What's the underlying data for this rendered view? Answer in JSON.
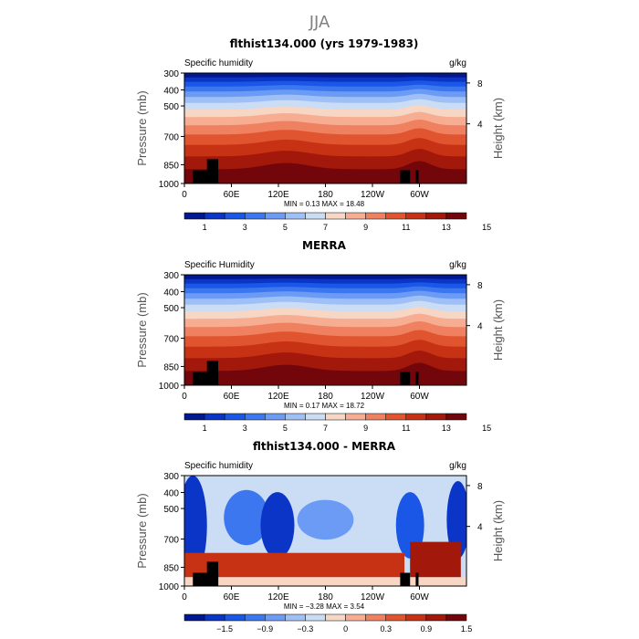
{
  "figure": {
    "title": "JJA"
  },
  "chart_data": [
    {
      "type": "heatmap",
      "title": "flthist134.000 (yrs 1979-1983)",
      "left_label": "Specific humidity",
      "units": "g/kg",
      "ylabel": "Pressure (mb)",
      "ylabel_right": "Height (km)",
      "y_ticks": [
        "300",
        "400",
        "500",
        "700",
        "850",
        "1000"
      ],
      "y_ticks_right": [
        "8",
        "4"
      ],
      "x_ticks": [
        "0",
        "60E",
        "120E",
        "180",
        "120W",
        "60W"
      ],
      "stats": "MIN =    0.13   MAX =   18.48",
      "colorbar_labels": [
        "1",
        "3",
        "5",
        "7",
        "9",
        "11",
        "13",
        "15"
      ],
      "colorbar_colors": [
        "#02188f",
        "#0a35c7",
        "#1a57e6",
        "#3c77f0",
        "#6b9bf5",
        "#9fc0f7",
        "#cbdcf5",
        "#f7d6c4",
        "#f6ad92",
        "#ef8060",
        "#e0552f",
        "#c73214",
        "#a2180a",
        "#73060a"
      ],
      "surface": "1.00",
      "ridge": "0.00",
      "dry_gain": "0.00"
    },
    {
      "type": "heatmap",
      "title": "MERRA",
      "left_label": "Specific Humidity",
      "units": "g/kg",
      "ylabel": "Pressure (mb)",
      "ylabel_right": "Height (km)",
      "y_ticks": [
        "300",
        "400",
        "500",
        "700",
        "850",
        "1000"
      ],
      "y_ticks_right": [
        "8",
        "4"
      ],
      "x_ticks": [
        "0",
        "60E",
        "120E",
        "180",
        "120W",
        "60W"
      ],
      "stats": "MIN =    0.17   MAX =   18.72",
      "colorbar_labels": [
        "1",
        "3",
        "5",
        "7",
        "9",
        "11",
        "13",
        "15"
      ],
      "colorbar_colors": [
        "#02188f",
        "#0a35c7",
        "#1a57e6",
        "#3c77f0",
        "#6b9bf5",
        "#9fc0f7",
        "#cbdcf5",
        "#f7d6c4",
        "#f6ad92",
        "#ef8060",
        "#e0552f",
        "#c73214",
        "#a2180a",
        "#73060a"
      ],
      "surface": "1.00",
      "ridge": "0.00",
      "dry_gain": "0.00"
    },
    {
      "type": "heatmap",
      "title": "flthist134.000 - MERRA",
      "left_label": "Specific humidity",
      "units": "g/kg",
      "ylabel": "Pressure (mb)",
      "ylabel_right": "Height (km)",
      "y_ticks": [
        "300",
        "400",
        "500",
        "700",
        "850",
        "1000"
      ],
      "y_ticks_right": [
        "8",
        "4"
      ],
      "x_ticks": [
        "0",
        "60E",
        "120E",
        "180",
        "120W",
        "60W"
      ],
      "stats": "MIN = −3.28   MAX =    3.54",
      "colorbar_labels": [
        "−1.5",
        "−0.9",
        "−0.3",
        "0",
        "0.3",
        "0.9",
        "1.5"
      ],
      "colorbar_colors": [
        "#02188f",
        "#0a35c7",
        "#1a57e6",
        "#3c77f0",
        "#6b9bf5",
        "#9fc0f7",
        "#cbdcf5",
        "#f7d6c4",
        "#f6ad92",
        "#ef8060",
        "#e0552f",
        "#c73214",
        "#a2180a",
        "#73060a"
      ],
      "surface": "1.00",
      "ridge": "0.00",
      "dry_gain": "0.00"
    }
  ]
}
